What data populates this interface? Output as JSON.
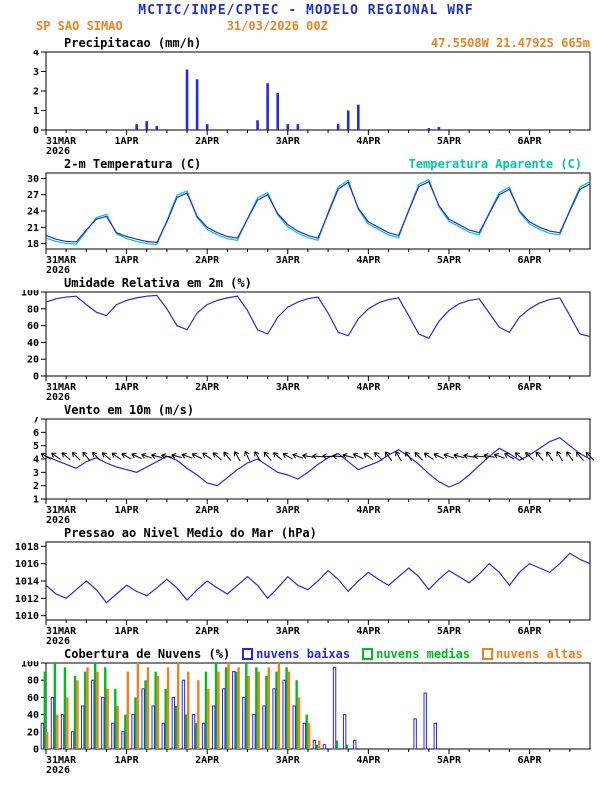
{
  "header": {
    "title": "MCTIC/INPE/CPTEC - MODELO REGIONAL WRF",
    "station": "SP SAO SIMAO",
    "run": "31/03/2026 00Z",
    "coords": "47.5508W 21.4792S 665m"
  },
  "colors": {
    "title_blue": "#2233bb",
    "accent_orange": "#ef8123",
    "line_blue": "#2929d6",
    "cyan": "#00c8b4",
    "green": "#00bb22",
    "axis_black": "#000000"
  },
  "time": {
    "year": "2026",
    "hours_total": 162,
    "step": 3,
    "tick_hours": [
      0,
      24,
      48,
      72,
      96,
      120,
      144
    ],
    "tick_labels": [
      "31MAR",
      "1APR",
      "2APR",
      "3APR",
      "4APR",
      "5APR",
      "6APR"
    ]
  },
  "chart_data": [
    {
      "id": "precip",
      "type": "bar",
      "title": "Precipitacao (mm/h)",
      "ylim": [
        0,
        4
      ],
      "yticks": [
        0,
        1,
        2,
        3,
        4
      ],
      "series": [
        {
          "name": "precipitacao",
          "kind": "bar",
          "color": "#2929d6",
          "values": [
            0,
            0,
            0,
            0,
            0,
            0,
            0,
            0,
            0,
            0.3,
            0.45,
            0.2,
            0,
            0,
            3.1,
            2.6,
            0.3,
            0,
            0,
            0,
            0,
            0.5,
            2.4,
            1.9,
            0.3,
            0.3,
            0,
            0,
            0,
            0.3,
            1.0,
            1.3,
            0,
            0,
            0,
            0,
            0,
            0,
            0.1,
            0.15,
            0,
            0,
            0,
            0,
            0,
            0,
            0,
            0,
            0,
            0,
            0,
            0,
            0,
            0,
            0
          ]
        }
      ]
    },
    {
      "id": "temp",
      "type": "line",
      "title": "2-m Temperatura (C)",
      "ylim": [
        17,
        31
      ],
      "yticks": [
        18,
        21,
        24,
        27,
        30
      ],
      "legend": [
        {
          "label": "Temperatura Aparente (C)",
          "color": "#00c8b4"
        }
      ],
      "series": [
        {
          "name": "temperatura-aparente",
          "kind": "line",
          "color": "#00c8b4",
          "values": [
            19.0,
            18.4,
            18.0,
            17.9,
            20.3,
            22.8,
            23.4,
            19.8,
            18.9,
            18.4,
            18.0,
            17.8,
            22.2,
            26.9,
            27.7,
            22.8,
            20.6,
            19.6,
            18.9,
            18.6,
            22.6,
            26.4,
            27.4,
            23.3,
            21.1,
            19.9,
            19.1,
            18.6,
            23.7,
            28.4,
            29.7,
            24.3,
            21.6,
            20.6,
            19.6,
            19.1,
            24.2,
            28.9,
            29.8,
            24.8,
            22.1,
            21.1,
            20.1,
            19.6,
            23.7,
            27.4,
            28.4,
            23.8,
            21.6,
            20.6,
            19.9,
            19.6,
            24.2,
            28.4,
            29.4
          ]
        },
        {
          "name": "temperatura-2m",
          "kind": "line",
          "color": "#2929d6",
          "values": [
            19.5,
            18.8,
            18.4,
            18.3,
            20.5,
            22.5,
            23.0,
            20.0,
            19.3,
            18.8,
            18.4,
            18.2,
            22.0,
            26.5,
            27.3,
            23.0,
            21.0,
            20.0,
            19.3,
            19.0,
            22.5,
            26.0,
            27.0,
            23.5,
            21.5,
            20.3,
            19.5,
            19.0,
            23.5,
            28.0,
            29.3,
            24.5,
            22.0,
            21.0,
            20.0,
            19.5,
            24.0,
            28.5,
            29.4,
            25.0,
            22.5,
            21.5,
            20.5,
            20.0,
            23.5,
            27.0,
            28.0,
            24.0,
            22.0,
            21.0,
            20.3,
            20.0,
            24.0,
            28.0,
            29.0
          ]
        }
      ]
    },
    {
      "id": "humidity",
      "type": "line",
      "title": "Umidade Relativa em 2m (%)",
      "ylim": [
        0,
        100
      ],
      "yticks": [
        0,
        20,
        40,
        60,
        80,
        100
      ],
      "series": [
        {
          "name": "umidade-relativa",
          "kind": "line",
          "color": "#2929d6",
          "values": [
            88,
            92,
            94,
            95,
            85,
            76,
            72,
            85,
            90,
            93,
            95,
            96,
            80,
            60,
            55,
            75,
            85,
            90,
            93,
            95,
            78,
            55,
            50,
            70,
            82,
            88,
            92,
            94,
            75,
            52,
            48,
            68,
            80,
            87,
            91,
            93,
            72,
            50,
            45,
            65,
            78,
            86,
            90,
            92,
            75,
            58,
            52,
            70,
            80,
            87,
            91,
            93,
            72,
            50,
            47
          ]
        }
      ]
    },
    {
      "id": "wind",
      "type": "line",
      "title": "Vento em 10m (m/s)",
      "ylim": [
        1,
        7
      ],
      "yticks": [
        1,
        2,
        3,
        4,
        5,
        6,
        7
      ],
      "series": [
        {
          "name": "vento-velocidade",
          "kind": "line",
          "color": "#2929d6",
          "values": [
            4.2,
            3.9,
            3.6,
            3.3,
            3.8,
            4.1,
            3.7,
            3.4,
            3.2,
            3.0,
            3.4,
            3.8,
            4.2,
            3.9,
            3.3,
            2.8,
            2.2,
            2.0,
            2.6,
            3.2,
            3.7,
            4.0,
            3.5,
            3.0,
            2.8,
            2.5,
            3.0,
            3.6,
            4.1,
            4.4,
            3.8,
            3.2,
            3.5,
            3.8,
            4.3,
            4.7,
            4.2,
            3.6,
            2.9,
            2.3,
            1.9,
            2.2,
            2.8,
            3.5,
            4.2,
            4.8,
            4.4,
            3.9,
            4.3,
            4.8,
            5.3,
            5.6,
            5.0,
            4.4,
            4.0
          ]
        },
        {
          "name": "vento-direcao-barbs",
          "kind": "barbs",
          "color": "#000000",
          "y": 4.2,
          "values": [
            120,
            125,
            130,
            135,
            140,
            135,
            130,
            125,
            120,
            115,
            110,
            105,
            100,
            105,
            110,
            115,
            125,
            130,
            140,
            150,
            155,
            150,
            140,
            130,
            120,
            110,
            100,
            95,
            90,
            95,
            105,
            115,
            125,
            135,
            145,
            150,
            145,
            135,
            125,
            115,
            110,
            105,
            100,
            95,
            100,
            110,
            120,
            130,
            135,
            140,
            145,
            150,
            145,
            140,
            135
          ]
        }
      ]
    },
    {
      "id": "pressure",
      "type": "line",
      "title": "Pressao ao Nivel Medio do Mar (hPa)",
      "ylim": [
        1009.5,
        1018.5
      ],
      "yticks": [
        1010,
        1012,
        1014,
        1016,
        1018
      ],
      "series": [
        {
          "name": "pressao-nivel-mar",
          "kind": "line",
          "color": "#2929d6",
          "values": [
            1013.5,
            1012.5,
            1012.0,
            1013.0,
            1014.0,
            1013.0,
            1011.5,
            1012.5,
            1013.5,
            1012.8,
            1012.3,
            1013.2,
            1014.2,
            1013.2,
            1011.8,
            1013.0,
            1014.0,
            1013.2,
            1012.5,
            1013.5,
            1014.5,
            1013.5,
            1012.0,
            1013.2,
            1014.5,
            1013.5,
            1013.0,
            1014.0,
            1015.2,
            1014.2,
            1012.8,
            1014.0,
            1015.0,
            1014.2,
            1013.5,
            1014.5,
            1015.5,
            1014.5,
            1013.0,
            1014.2,
            1015.2,
            1014.5,
            1013.8,
            1014.8,
            1016.0,
            1015.0,
            1013.5,
            1015.0,
            1016.0,
            1015.5,
            1015.0,
            1016.0,
            1017.2,
            1016.5,
            1016.0
          ]
        }
      ]
    },
    {
      "id": "clouds",
      "type": "bar",
      "title": "Cobertura de Nuvens (%)",
      "ylim": [
        0,
        100
      ],
      "yticks": [
        0,
        20,
        40,
        60,
        80,
        100
      ],
      "legend": [
        {
          "label": "nuvens baixas",
          "color": "#2929d6"
        },
        {
          "label": "nuvens medias",
          "color": "#00bb22"
        },
        {
          "label": "nuvens altas",
          "color": "#ef8123"
        }
      ],
      "series": [
        {
          "name": "nuvens-medias",
          "kind": "bar",
          "color": "#00bb22",
          "values": [
            90,
            100,
            95,
            85,
            90,
            100,
            95,
            70,
            40,
            60,
            80,
            90,
            70,
            50,
            40,
            30,
            90,
            100,
            95,
            90,
            100,
            95,
            85,
            90,
            95,
            80,
            40,
            5,
            0,
            10,
            5,
            0,
            0,
            0,
            0,
            0,
            0,
            0,
            0,
            0,
            0,
            0,
            0,
            0,
            0,
            0,
            0,
            0,
            0,
            0,
            0,
            0,
            0,
            0,
            0
          ]
        },
        {
          "name": "nuvens-altas",
          "kind": "bar",
          "color": "#ef8123",
          "values": [
            20,
            40,
            60,
            80,
            95,
            90,
            70,
            50,
            90,
            100,
            95,
            85,
            95,
            100,
            90,
            80,
            70,
            90,
            100,
            95,
            85,
            90,
            95,
            100,
            90,
            60,
            30,
            10,
            0,
            0,
            0,
            0,
            0,
            0,
            0,
            0,
            0,
            0,
            0,
            0,
            0,
            0,
            0,
            0,
            0,
            0,
            0,
            0,
            0,
            0,
            0,
            0,
            0,
            0,
            0
          ]
        },
        {
          "name": "nuvens-baixas",
          "kind": "bar",
          "color": "#2929d6",
          "hollow": true,
          "values": [
            30,
            60,
            40,
            20,
            50,
            80,
            60,
            30,
            20,
            40,
            70,
            50,
            30,
            60,
            80,
            40,
            30,
            50,
            70,
            90,
            60,
            40,
            50,
            70,
            80,
            50,
            30,
            10,
            5,
            95,
            40,
            10,
            0,
            0,
            0,
            0,
            0,
            35,
            65,
            30,
            0,
            0,
            0,
            0,
            0,
            0,
            0,
            0,
            0,
            0,
            0,
            0,
            0,
            0,
            0
          ]
        }
      ]
    }
  ]
}
